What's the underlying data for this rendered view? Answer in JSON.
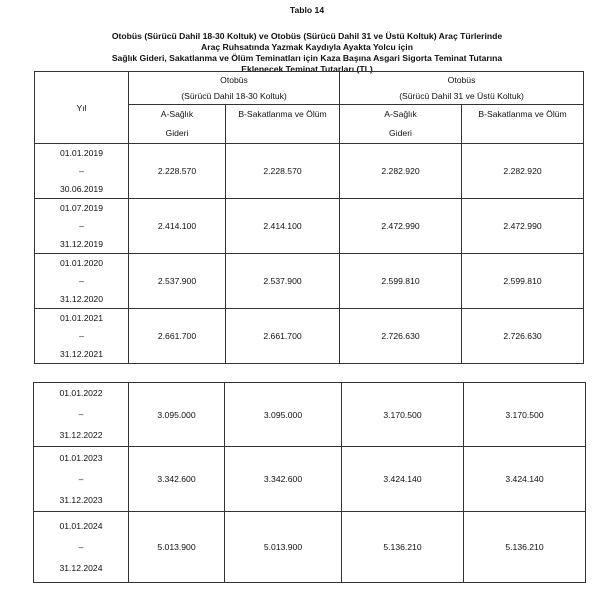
{
  "table_label": "Tablo 14",
  "heading_lines": [
    "Otobüs (Sürücü Dahil 18-30 Koltuk) ve Otobüs (Sürücü Dahil 31 ve Üstü Koltuk) Araç Türlerinde",
    "Araç Ruhsatında Yazmak Kaydıyla Ayakta Yolcu için",
    "Sağlık Gideri, Sakatlanma ve Ölüm Teminatları için Kaza Başına Asgari Sigorta Teminat Tutarına",
    "Eklenecek Teminat Tutarları (TL)"
  ],
  "header": {
    "year": "Yıl",
    "group1": {
      "line1": "Otobüs",
      "line2": "(Sürücü Dahil 18-30 Koltuk)"
    },
    "group2": {
      "line1": "Otobüs",
      "line2": "(Sürücü Dahil 31 ve Üstü Koltuk)"
    },
    "colA": {
      "line1": "A-Sağlık",
      "line2": "Gideri"
    },
    "colB": "B-Sakatlanma ve Ölüm"
  },
  "dash": "–",
  "rows": [
    {
      "start": "01.01.2019",
      "end": "30.06.2019",
      "a1": "2.228.570",
      "b1": "2.228.570",
      "a2": "2.282.920",
      "b2": "2.282.920"
    },
    {
      "start": "01.07.2019",
      "end": "31.12.2019",
      "a1": "2.414.100",
      "b1": "2.414.100",
      "a2": "2.472.990",
      "b2": "2.472.990"
    },
    {
      "start": "01.01.2020",
      "end": "31.12.2020",
      "a1": "2.537.900",
      "b1": "2.537.900",
      "a2": "2.599.810",
      "b2": "2.599.810"
    },
    {
      "start": "01.01.2021",
      "end": "31.12.2021",
      "a1": "2.661.700",
      "b1": "2.661.700",
      "a2": "2.726.630",
      "b2": "2.726.630"
    },
    {
      "start": "01.01.2022",
      "end": "31.12.2022",
      "a1": "3.095.000",
      "b1": "3.095.000",
      "a2": "3.170.500",
      "b2": "3.170.500"
    },
    {
      "start": "01.01.2023",
      "end": "31.12.2023",
      "a1": "3.342.600",
      "b1": "3.342.600",
      "a2": "3.424.140",
      "b2": "3.424.140"
    },
    {
      "start": "01.01.2024",
      "end": "31.12.2024",
      "a1": "5.013.900",
      "b1": "5.013.900",
      "a2": "5.136.210",
      "b2": "5.136.210"
    }
  ]
}
